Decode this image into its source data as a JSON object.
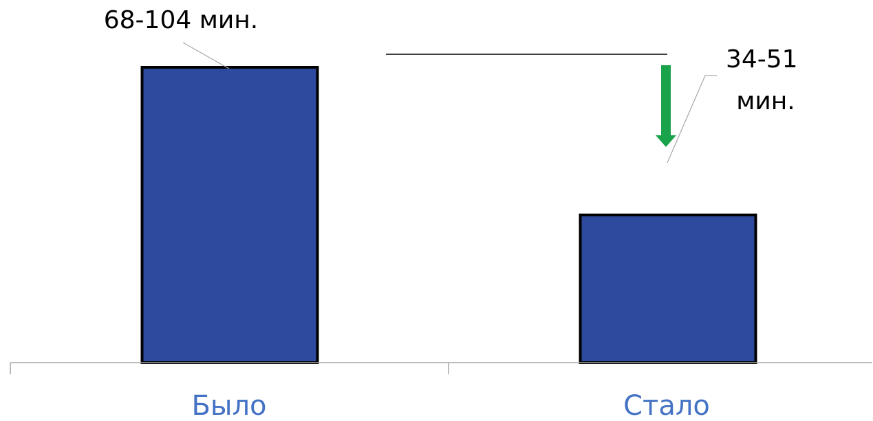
{
  "chart_data": {
    "type": "bar",
    "categories": [
      "Было",
      "Стало"
    ],
    "values": [
      86,
      43
    ],
    "ylim": [
      0,
      100
    ],
    "data_labels": [
      "68-104 мин.",
      "34-51 мин."
    ],
    "grid": false,
    "bar_color": "#2E4A9E",
    "bar_border_color": "#000000",
    "category_label_color": "#4472C4",
    "arrow_color": "#1AA34A",
    "axis_color": "#A6A6A6"
  }
}
